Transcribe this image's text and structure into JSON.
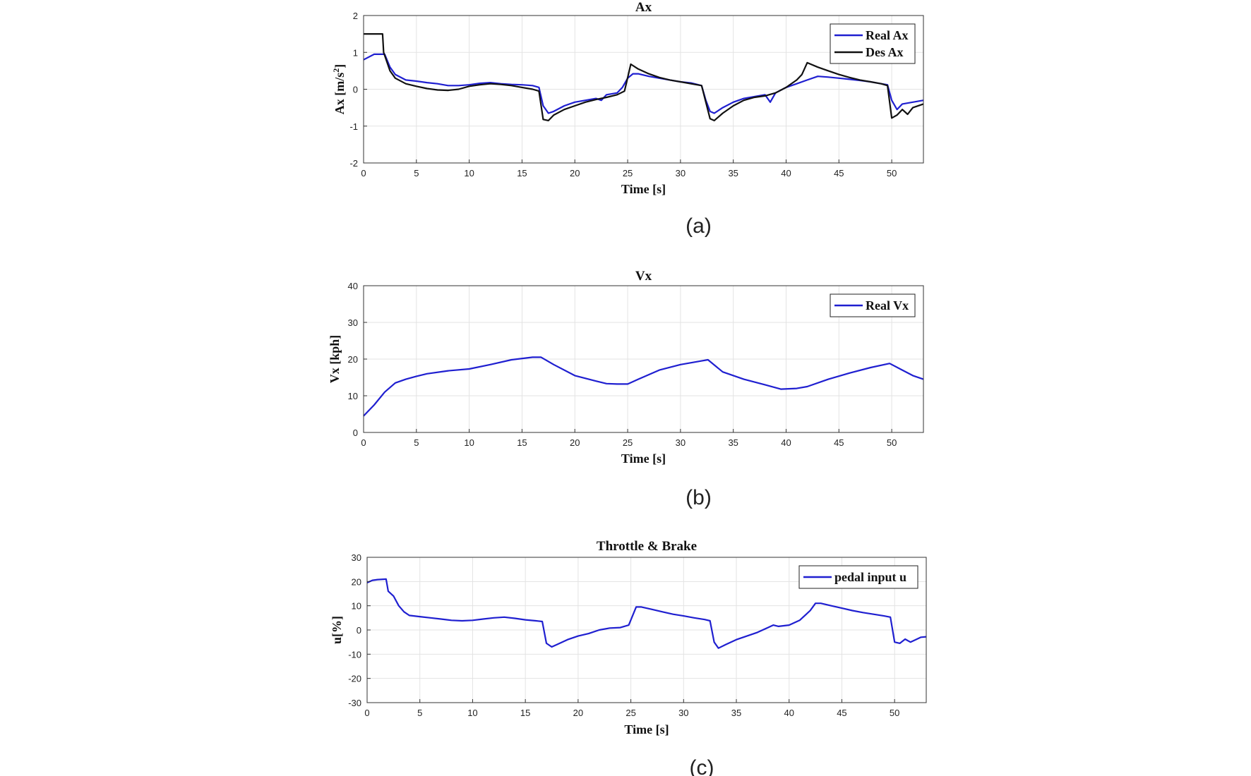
{
  "chart_data": [
    {
      "type": "line",
      "title": "Ax",
      "xlabel": "Time [s]",
      "ylabel": "Ax [m/s",
      "ylabel_sup": "2",
      "ylabel_end": "]",
      "xlim": [
        0,
        53
      ],
      "ylim": [
        -2,
        2
      ],
      "xticks": [
        0,
        5,
        10,
        15,
        20,
        25,
        30,
        35,
        40,
        45,
        50
      ],
      "yticks": [
        -2,
        -1,
        0,
        1,
        2
      ],
      "grid": true,
      "legend_position": "top-right",
      "caption": "(a)",
      "series": [
        {
          "name": "Real Ax",
          "color": "#1f1fd0",
          "x": [
            0,
            1,
            2,
            2.5,
            3,
            4,
            5,
            6,
            7,
            8,
            9,
            10,
            11,
            12,
            13,
            14,
            15,
            16,
            16.6,
            17,
            17.5,
            18,
            19,
            20,
            21,
            22,
            22.5,
            23,
            24,
            24.5,
            25,
            25.5,
            26,
            27,
            28,
            29,
            30,
            31,
            32,
            32.4,
            32.8,
            33.2,
            34,
            35,
            36,
            37,
            38,
            38.5,
            39,
            40,
            41,
            42,
            43,
            44,
            45,
            46,
            47,
            48,
            49,
            49.6,
            50,
            50.5,
            51,
            52,
            53
          ],
          "y": [
            0.8,
            0.95,
            0.95,
            0.6,
            0.4,
            0.25,
            0.22,
            0.18,
            0.15,
            0.1,
            0.1,
            0.12,
            0.16,
            0.18,
            0.15,
            0.13,
            0.12,
            0.1,
            0.05,
            -0.45,
            -0.65,
            -0.6,
            -0.45,
            -0.35,
            -0.3,
            -0.25,
            -0.3,
            -0.15,
            -0.1,
            0.05,
            0.3,
            0.42,
            0.42,
            0.35,
            0.3,
            0.25,
            0.2,
            0.17,
            0.1,
            -0.3,
            -0.6,
            -0.65,
            -0.5,
            -0.35,
            -0.25,
            -0.2,
            -0.15,
            -0.35,
            -0.1,
            0.05,
            0.15,
            0.25,
            0.35,
            0.33,
            0.3,
            0.27,
            0.24,
            0.2,
            0.15,
            0.12,
            -0.3,
            -0.55,
            -0.4,
            -0.35,
            -0.3
          ]
        },
        {
          "name": "Des Ax",
          "color": "#111111",
          "x": [
            0,
            1.8,
            1.9,
            2.5,
            3,
            4,
            5,
            6,
            7,
            8,
            9,
            10,
            11,
            12,
            13,
            14,
            15,
            16,
            16.6,
            17,
            17.5,
            18,
            19,
            20,
            21,
            22,
            23,
            24,
            24.7,
            25.3,
            26,
            27,
            28,
            29,
            30,
            31,
            32,
            32.4,
            32.8,
            33.2,
            34,
            35,
            36,
            37,
            38,
            39,
            40,
            41,
            41.5,
            42,
            43,
            44,
            45,
            46,
            47,
            48,
            49,
            49.6,
            50,
            50.5,
            51,
            51.5,
            52,
            53
          ],
          "y": [
            1.5,
            1.5,
            1.0,
            0.5,
            0.3,
            0.15,
            0.08,
            0.02,
            -0.02,
            -0.03,
            0.0,
            0.08,
            0.12,
            0.15,
            0.13,
            0.1,
            0.05,
            0.0,
            -0.05,
            -0.82,
            -0.85,
            -0.7,
            -0.55,
            -0.45,
            -0.35,
            -0.28,
            -0.22,
            -0.15,
            -0.05,
            0.68,
            0.55,
            0.42,
            0.32,
            0.25,
            0.2,
            0.15,
            0.1,
            -0.35,
            -0.8,
            -0.85,
            -0.65,
            -0.45,
            -0.3,
            -0.22,
            -0.18,
            -0.1,
            0.05,
            0.25,
            0.4,
            0.72,
            0.6,
            0.5,
            0.4,
            0.32,
            0.25,
            0.2,
            0.15,
            0.1,
            -0.78,
            -0.7,
            -0.55,
            -0.68,
            -0.5,
            -0.4
          ]
        }
      ]
    },
    {
      "type": "line",
      "title": "Vx",
      "xlabel": "Time [s]",
      "ylabel": "Vx [kph]",
      "xlim": [
        0,
        53
      ],
      "ylim": [
        0,
        40
      ],
      "xticks": [
        0,
        5,
        10,
        15,
        20,
        25,
        30,
        35,
        40,
        45,
        50
      ],
      "yticks": [
        0,
        10,
        20,
        30,
        40
      ],
      "grid": true,
      "legend_position": "top-right",
      "caption": "(b)",
      "series": [
        {
          "name": "Real Vx",
          "color": "#1f1fd0",
          "x": [
            0,
            1,
            2,
            3,
            4,
            5,
            6,
            8,
            10,
            12,
            14,
            16,
            16.8,
            18,
            20,
            22,
            23,
            24,
            25,
            26,
            28,
            30,
            32,
            32.6,
            34,
            36,
            38,
            39.5,
            41,
            42,
            44,
            46,
            48,
            49.8,
            51,
            52,
            53
          ],
          "y": [
            4.5,
            7.5,
            11,
            13.5,
            14.5,
            15.3,
            16,
            16.8,
            17.3,
            18.5,
            19.8,
            20.5,
            20.5,
            18.5,
            15.5,
            14,
            13.3,
            13.2,
            13.2,
            14.5,
            17,
            18.5,
            19.5,
            19.8,
            16.5,
            14.5,
            13,
            11.8,
            12,
            12.5,
            14.5,
            16.2,
            17.7,
            18.8,
            17,
            15.5,
            14.5
          ]
        }
      ]
    },
    {
      "type": "line",
      "title": "Throttle & Brake",
      "xlabel": "Time [s]",
      "ylabel": "u[%]",
      "xlim": [
        0,
        53
      ],
      "ylim": [
        -30,
        30
      ],
      "xticks": [
        0,
        5,
        10,
        15,
        20,
        25,
        30,
        35,
        40,
        45,
        50
      ],
      "yticks": [
        -30,
        -20,
        -10,
        0,
        10,
        20,
        30
      ],
      "grid": true,
      "legend_position": "top-right",
      "caption": "(c)",
      "series": [
        {
          "name": "pedal input u",
          "color": "#1f1fd0",
          "x": [
            0,
            0.5,
            1,
            1.8,
            2,
            2.5,
            3,
            3.5,
            4,
            5,
            6,
            7,
            8,
            9,
            10,
            11,
            12,
            13,
            14,
            15,
            16,
            16.6,
            17,
            17.5,
            18,
            19,
            20,
            21,
            22,
            23,
            24,
            24.8,
            25.5,
            26,
            27,
            28,
            29,
            30,
            31,
            32,
            32.5,
            32.9,
            33.3,
            34,
            35,
            36,
            37,
            38,
            38.5,
            39,
            40,
            41,
            42,
            42.5,
            43,
            44,
            45,
            46,
            47,
            48,
            49,
            49.6,
            50,
            50.5,
            51,
            51.5,
            52,
            52.5,
            53
          ],
          "y": [
            19.5,
            20.5,
            20.8,
            21,
            16,
            14,
            10,
            7.5,
            6,
            5.5,
            5,
            4.5,
            4,
            3.8,
            4,
            4.5,
            5,
            5.3,
            4.8,
            4.2,
            3.8,
            3.5,
            -5.5,
            -7,
            -6,
            -4,
            -2.5,
            -1.5,
            0,
            0.8,
            1,
            2,
            9.5,
            9.5,
            8.5,
            7.5,
            6.5,
            5.8,
            5,
            4.3,
            3.8,
            -5,
            -7.5,
            -6,
            -4,
            -2.5,
            -1,
            1,
            2,
            1.5,
            2,
            4,
            8,
            11,
            11,
            10,
            9,
            8,
            7.2,
            6.5,
            5.8,
            5.3,
            -5,
            -5.5,
            -3.8,
            -5,
            -4,
            -3,
            -2.8
          ]
        }
      ]
    }
  ]
}
